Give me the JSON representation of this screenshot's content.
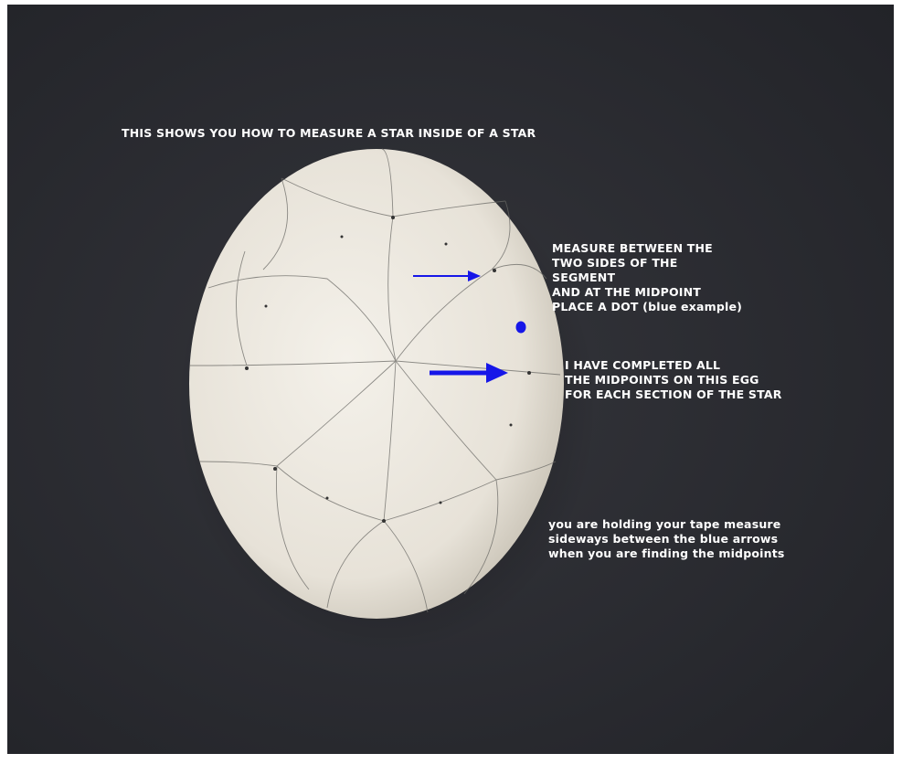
{
  "annotations": {
    "title": "THIS SHOWS YOU HOW TO MEASURE A STAR INSIDE OF A STAR",
    "measure_note": [
      "MEASURE BETWEEN THE",
      "TWO SIDES OF THE",
      "SEGMENT",
      "AND AT THE MIDPOINT",
      "PLACE A DOT (blue example)"
    ],
    "completed_note": [
      "I HAVE COMPLETED ALL",
      "THE MIDPOINTS ON THIS EGG",
      "FOR EACH SECTION OF THE STAR"
    ],
    "tape_note": [
      "you are holding your tape measure",
      "sideways between the blue arrows",
      "when you are finding the midpoints"
    ]
  }
}
